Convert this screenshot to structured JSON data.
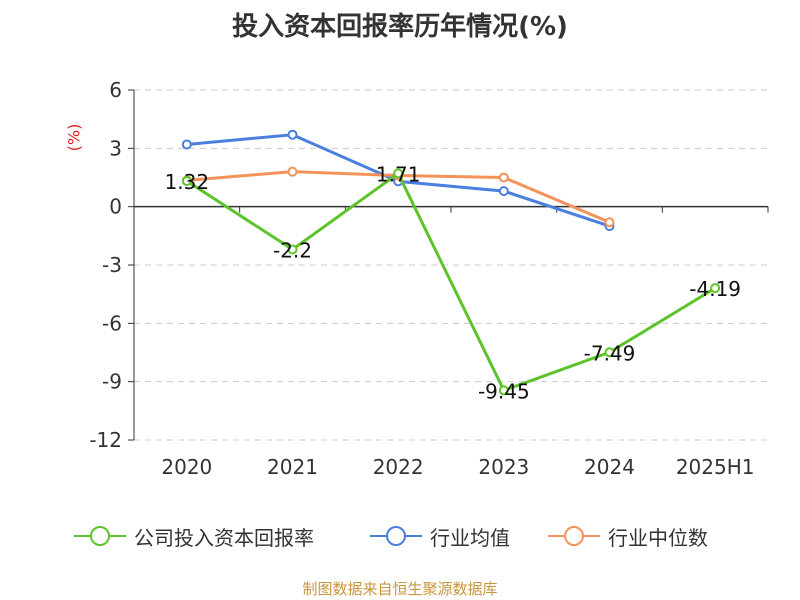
{
  "title": "投入资本回报率历年情况(%)",
  "unit_label": "(%)",
  "source": "制图数据来自恒生聚源数据库",
  "colors": {
    "company": "#5cc42a",
    "industry_avg": "#4a7fe0",
    "industry_median": "#f5925a",
    "axis": "#333333",
    "grid": "#cccccc"
  },
  "chart_data": {
    "type": "line",
    "categories": [
      "2020",
      "2021",
      "2022",
      "2023",
      "2024",
      "2025H1"
    ],
    "ylim": [
      -12,
      6
    ],
    "yticks": [
      6,
      3,
      0,
      -3,
      -6,
      -9,
      -12
    ],
    "ylabel": "(%)",
    "grid": true,
    "legend_position": "bottom",
    "series": [
      {
        "name": "公司投入资本回报率",
        "values": [
          1.32,
          -2.2,
          1.71,
          -9.45,
          -7.49,
          -4.19
        ],
        "labels": [
          "1.32",
          "-2.2",
          "1.71",
          "-9.45",
          "-7.49",
          "-4.19"
        ]
      },
      {
        "name": "行业均值",
        "values": [
          3.2,
          3.7,
          1.3,
          0.8,
          -1.0,
          null
        ]
      },
      {
        "name": "行业中位数",
        "values": [
          1.35,
          1.8,
          1.6,
          1.5,
          -0.8,
          null
        ]
      }
    ]
  }
}
